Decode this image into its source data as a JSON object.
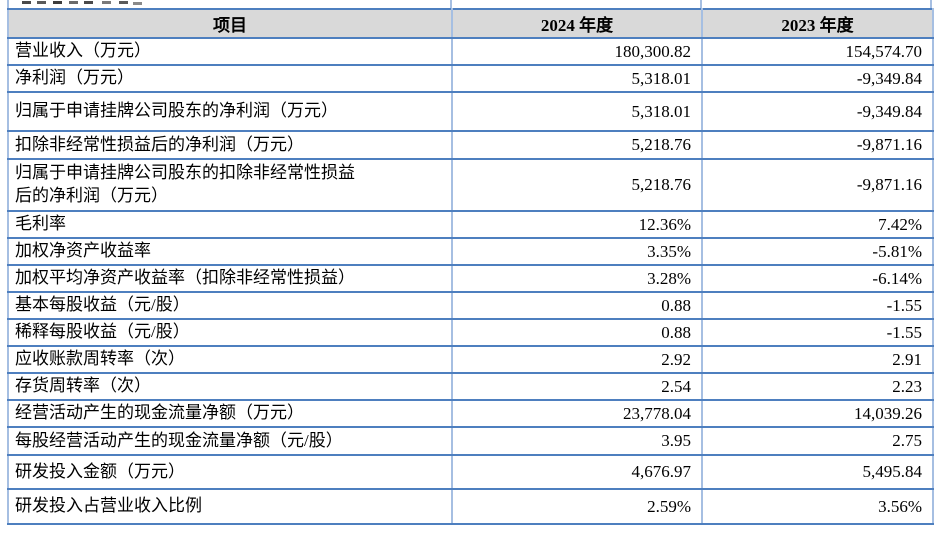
{
  "table": {
    "header": {
      "item": "项目",
      "col_2024": "2024 年度",
      "col_2023": "2023 年度"
    },
    "rows": [
      {
        "label": "营业收入（万元）",
        "y2024": "180,300.82",
        "y2023": "154,574.70"
      },
      {
        "label": "净利润（万元）",
        "y2024": "5,318.01",
        "y2023": "-9,349.84"
      },
      {
        "label": "归属于申请挂牌公司股东的净利润（万元）",
        "y2024": "5,318.01",
        "y2023": "-9,349.84"
      },
      {
        "label": "扣除非经常性损益后的净利润（万元）",
        "y2024": "5,218.76",
        "y2023": "-9,871.16"
      },
      {
        "label": "归属于申请挂牌公司股东的扣除非经常性损益\n后的净利润（万元）",
        "y2024": "5,218.76",
        "y2023": "-9,871.16"
      },
      {
        "label": "毛利率",
        "y2024": "12.36%",
        "y2023": "7.42%"
      },
      {
        "label": "加权净资产收益率",
        "y2024": "3.35%",
        "y2023": "-5.81%"
      },
      {
        "label": "加权平均净资产收益率（扣除非经常性损益）",
        "y2024": "3.28%",
        "y2023": "-6.14%"
      },
      {
        "label": "基本每股收益（元/股）",
        "y2024": "0.88",
        "y2023": "-1.55"
      },
      {
        "label": "稀释每股收益（元/股）",
        "y2024": "0.88",
        "y2023": "-1.55"
      },
      {
        "label": "应收账款周转率（次）",
        "y2024": "2.92",
        "y2023": "2.91"
      },
      {
        "label": "存货周转率（次）",
        "y2024": "2.54",
        "y2023": "2.23"
      },
      {
        "label": "经营活动产生的现金流量净额（万元）",
        "y2024": "23,778.04",
        "y2023": "14,039.26"
      },
      {
        "label": "每股经营活动产生的现金流量净额（元/股）",
        "y2024": "3.95",
        "y2023": "2.75"
      },
      {
        "label": "研发投入金额（万元）",
        "y2024": "4,676.97",
        "y2023": "5,495.84"
      },
      {
        "label": "研发投入占营业收入比例",
        "y2024": "2.59%",
        "y2023": "3.56%"
      }
    ]
  },
  "colors": {
    "header_bg": "#d9d9d9",
    "horizontal_line": "#4e7fbf",
    "vertical_line": "#a6bfe2",
    "text": "#000000",
    "page_bg": "#ffffff"
  }
}
